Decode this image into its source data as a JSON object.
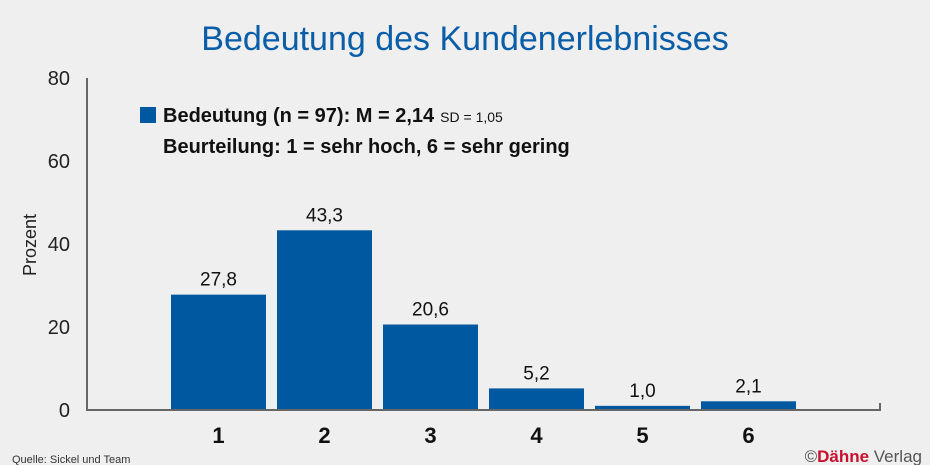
{
  "chart_data": {
    "type": "bar",
    "title": "Bedeutung des Kundenerlebnisses",
    "ylabel": "Prozent",
    "xlabel": "",
    "categories": [
      "1",
      "2",
      "3",
      "4",
      "5",
      "6"
    ],
    "series": [
      {
        "name": "Bedeutung (n = 97): M = 2,14",
        "values": [
          27.8,
          43.3,
          20.6,
          5.2,
          1.0,
          2.1
        ]
      }
    ],
    "data_labels": [
      "27,8",
      "43,3",
      "20,6",
      "5,2",
      "1,0",
      "2,1"
    ],
    "ylim": [
      0,
      80
    ],
    "yticks": [
      "0",
      "20",
      "40",
      "60",
      "80"
    ],
    "grid": false,
    "legend": {
      "placement": "top-left",
      "series_label": "Bedeutung (n = 97): M = 2,14",
      "sd_label": "SD = 1,05",
      "scale_note": "Beurteilung: 1 = sehr hoch, 6 = sehr gering"
    },
    "colors": {
      "bar": "#0059a0",
      "title": "#0a5ea8",
      "brand": "#c8102e"
    }
  },
  "footer": {
    "source": "Quelle: Sickel und Team",
    "copyright_symbol": "©",
    "brand_a": "Dähne",
    "brand_b": " Verlag"
  }
}
